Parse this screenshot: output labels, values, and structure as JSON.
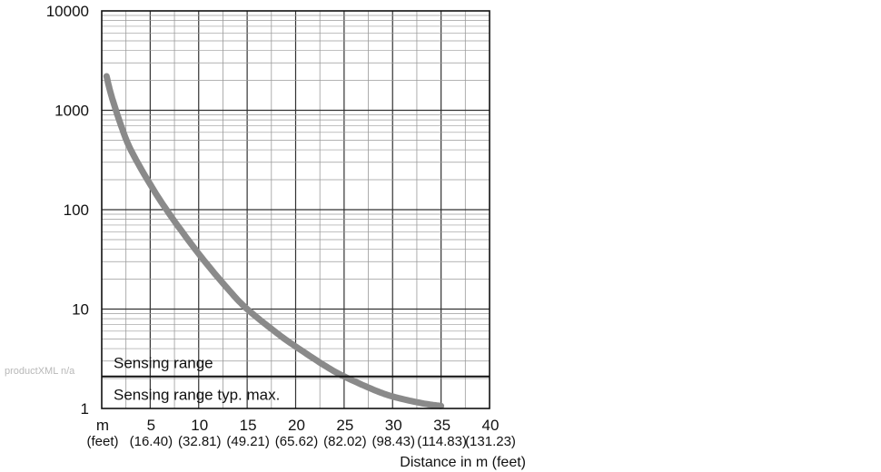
{
  "watermark": "productXML n/a",
  "chart_data": {
    "type": "line",
    "title": "",
    "xlabel": "Distance in m (feet)",
    "ylabel": "",
    "y_scale": "log",
    "ylim": [
      1,
      10000
    ],
    "xlim": [
      0,
      40
    ],
    "y_ticks": [
      1,
      10,
      100,
      1000,
      10000
    ],
    "y_tick_labels": [
      "1",
      "10",
      "100",
      "1000",
      "10000"
    ],
    "x_unit_label": "m",
    "x_unit_label_secondary": "(feet)",
    "x_ticks": [
      5,
      10,
      15,
      20,
      25,
      30,
      35,
      40
    ],
    "x_tick_labels": [
      "5",
      "10",
      "15",
      "20",
      "25",
      "30",
      "35",
      "40"
    ],
    "x_tick_labels_secondary": [
      "(16.40)",
      "(32.81)",
      "(49.21)",
      "(65.62)",
      "(82.02)",
      "(98.43)",
      "(114.83)",
      "(131.23)"
    ],
    "grid": true,
    "series": [
      {
        "name": "",
        "color": "#8a8a8a",
        "x": [
          0.5,
          1,
          2,
          3,
          5,
          7,
          10,
          13,
          15,
          18,
          20,
          23,
          25,
          28,
          30,
          33,
          35
        ],
        "y": [
          2200,
          1400,
          700,
          400,
          180,
          90,
          36,
          16,
          10,
          5.8,
          4.2,
          2.7,
          2.1,
          1.55,
          1.32,
          1.13,
          1.06
        ]
      }
    ],
    "threshold": {
      "y": 2.1,
      "label_above": "Sensing range",
      "label_below": "Sensing range typ. max."
    }
  }
}
